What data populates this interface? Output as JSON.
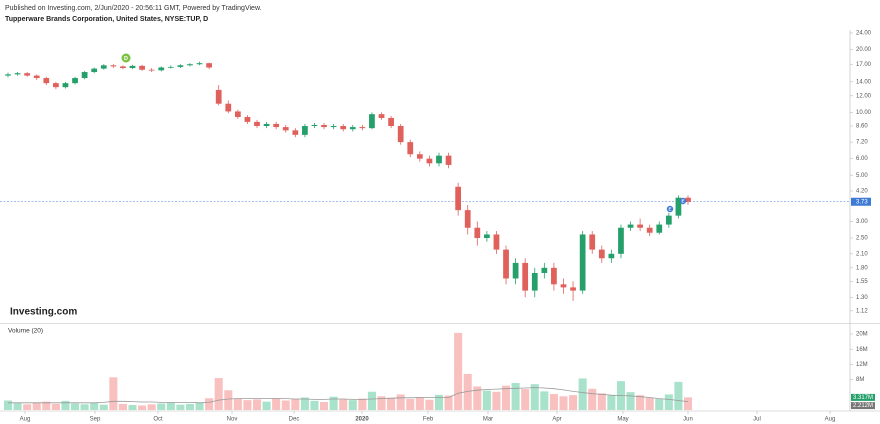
{
  "header": {
    "published": "Published on Investing.com, 2/Jun/2020 - 20:56:11 GMT, Powered by TradingView.",
    "title": "Tupperware Brands Corporation, United States, NYSE:TUP, D",
    "logo": "Investing.com"
  },
  "chart_data": {
    "type": "candlestick",
    "log_scale": true,
    "up_color": "#26a06b",
    "down_color": "#e0605c",
    "open": [
      15.0,
      15.2,
      15.4,
      15.0,
      14.6,
      13.8,
      13.2,
      13.8,
      14.6,
      15.6,
      16.2,
      16.8,
      16.6,
      16.3,
      16.7,
      16.0,
      15.9,
      16.4,
      16.5,
      16.8,
      17.0,
      17.2,
      12.8,
      11.0,
      10.1,
      9.5,
      9.0,
      8.6,
      8.8,
      8.5,
      8.2,
      7.8,
      8.6,
      8.7,
      8.5,
      8.6,
      8.3,
      8.5,
      8.4,
      9.8,
      9.4,
      8.6,
      7.2,
      6.3,
      6.0,
      5.7,
      6.2,
      4.4,
      3.4,
      2.8,
      2.5,
      2.6,
      2.2,
      1.6,
      1.9,
      1.4,
      1.7,
      1.8,
      1.5,
      1.45,
      1.4,
      2.6,
      2.2,
      2.0,
      2.1,
      2.8,
      2.9,
      2.8,
      2.65,
      2.9,
      3.2,
      3.9
    ],
    "high": [
      15.5,
      15.6,
      15.6,
      15.2,
      14.8,
      14.0,
      14.0,
      14.8,
      15.8,
      16.4,
      17.0,
      17.0,
      16.8,
      16.9,
      16.9,
      16.3,
      16.6,
      16.8,
      17.0,
      17.2,
      17.5,
      17.3,
      13.5,
      11.4,
      10.3,
      9.7,
      9.2,
      9.0,
      9.0,
      8.7,
      8.4,
      8.8,
      8.9,
      8.9,
      8.8,
      8.8,
      8.7,
      8.7,
      10.0,
      10.0,
      9.6,
      8.8,
      7.4,
      6.5,
      6.2,
      6.4,
      6.4,
      4.6,
      3.6,
      3.0,
      2.7,
      2.7,
      2.3,
      2.0,
      2.0,
      1.8,
      1.9,
      1.9,
      1.6,
      1.55,
      2.7,
      2.7,
      2.3,
      2.2,
      2.9,
      3.0,
      3.1,
      2.9,
      3.0,
      3.3,
      4.0,
      4.0
    ],
    "low": [
      14.7,
      15.0,
      14.8,
      14.3,
      13.5,
      12.9,
      13.0,
      13.6,
      14.4,
      15.4,
      16.0,
      16.3,
      16.1,
      16.1,
      15.8,
      15.6,
      15.7,
      16.2,
      16.3,
      16.6,
      16.8,
      16.1,
      10.8,
      9.9,
      9.3,
      8.8,
      8.4,
      8.4,
      8.3,
      8.0,
      7.6,
      7.6,
      8.4,
      8.3,
      8.3,
      8.1,
      8.1,
      8.2,
      8.3,
      9.2,
      8.4,
      7.0,
      6.1,
      5.8,
      5.5,
      5.5,
      5.4,
      3.2,
      2.6,
      2.3,
      2.4,
      2.1,
      1.5,
      1.5,
      1.3,
      1.3,
      1.6,
      1.4,
      1.35,
      1.25,
      1.35,
      2.1,
      1.9,
      1.9,
      2.0,
      2.7,
      2.7,
      2.55,
      2.6,
      2.8,
      3.1,
      3.6
    ],
    "close": [
      15.2,
      15.4,
      15.0,
      14.6,
      13.8,
      13.2,
      13.8,
      14.6,
      15.6,
      16.2,
      16.8,
      16.6,
      16.3,
      16.7,
      16.0,
      15.9,
      16.4,
      16.5,
      16.8,
      17.0,
      17.2,
      16.4,
      11.0,
      10.1,
      9.5,
      9.0,
      8.6,
      8.8,
      8.5,
      8.2,
      7.8,
      8.6,
      8.7,
      8.5,
      8.6,
      8.3,
      8.5,
      8.4,
      9.8,
      9.4,
      8.6,
      7.2,
      6.3,
      6.0,
      5.7,
      6.2,
      5.6,
      3.4,
      2.8,
      2.5,
      2.6,
      2.2,
      1.6,
      1.9,
      1.4,
      1.7,
      1.8,
      1.5,
      1.45,
      1.4,
      2.6,
      2.2,
      2.0,
      2.1,
      2.8,
      2.9,
      2.8,
      2.65,
      2.9,
      3.2,
      3.9,
      3.73
    ],
    "last_price": 3.73,
    "ylim": [
      0.99,
      24.8
    ],
    "yticks": [
      {
        "value": 24,
        "label": "24.00"
      },
      {
        "value": 20,
        "label": "20.00"
      },
      {
        "value": 17,
        "label": "17.00"
      },
      {
        "value": 14,
        "label": "14.00"
      },
      {
        "value": 12,
        "label": "12.00"
      },
      {
        "value": 10,
        "label": "10.00"
      },
      {
        "value": 8.6,
        "label": "8.60"
      },
      {
        "value": 7.2,
        "label": "7.20"
      },
      {
        "value": 6,
        "label": "6.00"
      },
      {
        "value": 5,
        "label": "5.00"
      },
      {
        "value": 4.2,
        "label": "4.20"
      },
      {
        "value": 3,
        "label": "3.00"
      },
      {
        "value": 2.5,
        "label": "2.50"
      },
      {
        "value": 2.1,
        "label": "2.10"
      },
      {
        "value": 1.8,
        "label": "1.80"
      },
      {
        "value": 1.55,
        "label": "1.55"
      },
      {
        "value": 1.3,
        "label": "1.30"
      },
      {
        "value": 1.12,
        "label": "1.12"
      }
    ],
    "xticks": [
      "Aug",
      "Sep",
      "Oct",
      "Nov",
      "Dec",
      "2020",
      "Feb",
      "Mar",
      "Apr",
      "May",
      "Jun",
      "Jul",
      "Aug"
    ],
    "markers": [
      "D",
      "E",
      "E"
    ],
    "volume": {
      "title": "Volume (20)",
      "up_color": "#a8e2cb",
      "down_color": "#f8c0bf",
      "values": [
        2500000,
        1800000,
        1500000,
        2000000,
        2200000,
        1600000,
        2400000,
        1700000,
        1500000,
        1900000,
        1400000,
        8600000,
        1600000,
        1300000,
        1200000,
        1500000,
        1700000,
        1900000,
        1400000,
        1600000,
        2000000,
        3100000,
        8400000,
        5200000,
        3000000,
        2600000,
        2800000,
        2200000,
        3100000,
        2500000,
        2900000,
        3300000,
        2400000,
        2100000,
        3500000,
        2800000,
        2600000,
        3000000,
        4800000,
        3600000,
        3200000,
        4100000,
        2900000,
        3400000,
        2700000,
        4000000,
        3800000,
        20300000,
        9500000,
        6200000,
        5100000,
        4800000,
        6400000,
        7100000,
        5500000,
        6800000,
        4900000,
        4200000,
        3600000,
        3900000,
        8300000,
        5600000,
        4400000,
        3800000,
        7600000,
        4700000,
        3900000,
        3200000,
        2900000,
        4100000,
        7400000,
        3317000
      ],
      "last_value_label": "3.317M",
      "ma": {
        "color": "#999999",
        "values": [
          1900000,
          1900000,
          1900000,
          1900000,
          1900000,
          1900000,
          1900000,
          1900000,
          1900000,
          1900000,
          2000000,
          2300000,
          2300000,
          2200000,
          2100000,
          2100000,
          2000000,
          2000000,
          2000000,
          2000000,
          1900000,
          2000000,
          2600000,
          2900000,
          3000000,
          3000000,
          3000000,
          3000000,
          3000000,
          3000000,
          2900000,
          2900000,
          2800000,
          2800000,
          2900000,
          2900000,
          2800000,
          2800000,
          2900000,
          3000000,
          3100000,
          3200000,
          3200000,
          3300000,
          3300000,
          3300000,
          3300000,
          4400000,
          4900000,
          5200000,
          5400000,
          5500000,
          5600000,
          5700000,
          5800000,
          5900000,
          5800000,
          5600000,
          5300000,
          4900000,
          4600000,
          4300000,
          4100000,
          3900000,
          3800000,
          3700000,
          3500000,
          3300000,
          3000000,
          2800000,
          2500000,
          2212000
        ],
        "last_value_label": "2.212M"
      },
      "ylim": [
        0,
        21050000
      ],
      "yticks": [
        {
          "value": 8000000,
          "label": "8M"
        },
        {
          "value": 12000000,
          "label": "12M"
        },
        {
          "value": 16000000,
          "label": "16M"
        },
        {
          "value": 20000000,
          "label": "20M"
        }
      ]
    }
  }
}
